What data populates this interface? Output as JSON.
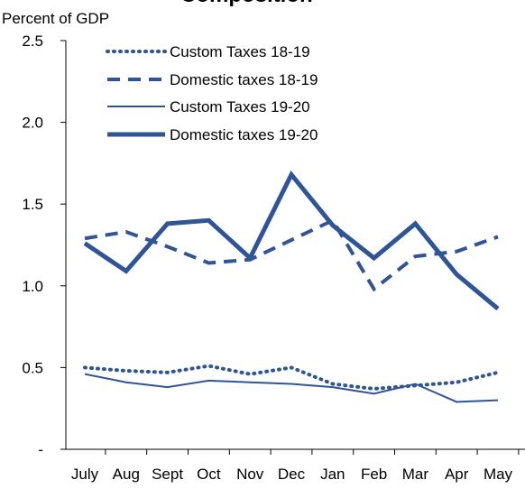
{
  "chart_data": {
    "type": "line",
    "title": "Composition",
    "ylabel": "Percent of GDP",
    "xlabel": "",
    "categories": [
      "July",
      "Aug",
      "Sept",
      "Oct",
      "Nov",
      "Dec",
      "Jan",
      "Feb",
      "Mar",
      "Apr",
      "May"
    ],
    "y_tick_labels": [
      "-",
      "0.5",
      "1.0",
      "1.5",
      "2.0",
      "2.5"
    ],
    "y_ticks": [
      0,
      0.5,
      1.0,
      1.5,
      2.0,
      2.5
    ],
    "ylim": [
      0,
      2.5
    ],
    "grid": false,
    "legend_position": "top-left",
    "series": [
      {
        "name": "Custom Taxes 18-19",
        "style": "dotted",
        "color": "#2f5597",
        "values": [
          0.5,
          0.48,
          0.47,
          0.51,
          0.46,
          0.5,
          0.4,
          0.37,
          0.39,
          0.41,
          0.47
        ]
      },
      {
        "name": "Domestic taxes 18-19",
        "style": "dashed",
        "color": "#2f5597",
        "values": [
          1.29,
          1.33,
          1.24,
          1.14,
          1.16,
          1.28,
          1.4,
          0.98,
          1.18,
          1.21,
          1.3
        ]
      },
      {
        "name": "Custom Taxes 19-20",
        "style": "thin",
        "color": "#2f5597",
        "values": [
          0.46,
          0.41,
          0.38,
          0.42,
          0.41,
          0.4,
          0.38,
          0.34,
          0.4,
          0.29,
          0.3
        ]
      },
      {
        "name": "Domestic taxes 19-20",
        "style": "thick",
        "color": "#2f5597",
        "values": [
          1.26,
          1.09,
          1.38,
          1.4,
          1.17,
          1.68,
          1.37,
          1.17,
          1.38,
          1.07,
          0.86
        ]
      }
    ]
  }
}
